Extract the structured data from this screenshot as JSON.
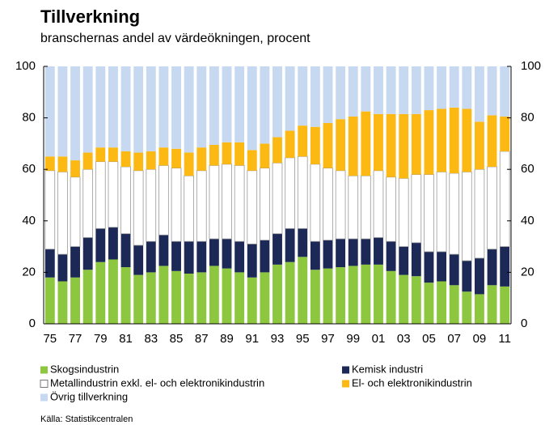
{
  "chart_data": {
    "type": "stacked_bar",
    "title": "Tillverkning",
    "subtitle": "branschernas andel av värdeökningen, procent",
    "source": "Källa: Statistikcentralen",
    "categories": [
      "75",
      null,
      "77",
      null,
      "79",
      null,
      "81",
      null,
      "83",
      null,
      "85",
      null,
      "87",
      null,
      "89",
      null,
      "91",
      null,
      "93",
      null,
      "95",
      null,
      "97",
      null,
      "99",
      null,
      "01",
      null,
      "03",
      null,
      "05",
      null,
      "07",
      null,
      "09",
      null,
      "11"
    ],
    "series": [
      {
        "name": "Skogsindustrin",
        "color": "#8dc63f",
        "values": [
          18,
          16.5,
          18,
          21,
          24,
          25,
          22,
          19,
          20,
          22.5,
          20.5,
          19.5,
          20,
          22.5,
          21.5,
          20,
          18,
          20,
          23,
          24,
          26,
          21,
          21.5,
          22,
          22.5,
          23,
          23,
          20.5,
          19,
          18.5,
          16,
          16.5,
          15,
          12.5,
          11.5,
          15,
          14.5
        ]
      },
      {
        "name": "Kemisk industri",
        "color": "#1c2957",
        "values": [
          11,
          10.5,
          12,
          12.5,
          13,
          12.5,
          13,
          11.5,
          12,
          12,
          11.5,
          12.5,
          12,
          10.5,
          11.5,
          12,
          13,
          12.5,
          12,
          13,
          11,
          11,
          11,
          11,
          10.5,
          10,
          10.5,
          11.5,
          11,
          13,
          12,
          11.5,
          12,
          12,
          14,
          14,
          15.5
        ]
      },
      {
        "name": "Metallindustrin exkl. el- och elektronikindustrin",
        "color": "#ffffff",
        "values": [
          30.5,
          32,
          27,
          26.5,
          26,
          25.5,
          26,
          29,
          28,
          27,
          28.5,
          25.5,
          27.5,
          28.5,
          29,
          29.5,
          28.5,
          28,
          27.5,
          27.5,
          28,
          30,
          28,
          26.5,
          24.5,
          24.5,
          26,
          25,
          26.5,
          26.5,
          30,
          31,
          31.5,
          34.5,
          34.5,
          32,
          37
        ]
      },
      {
        "name": "El- och elektronikindustrin",
        "color": "#fdb913",
        "values": [
          5.5,
          6,
          6.5,
          6.5,
          5.5,
          5.5,
          6,
          7,
          7,
          7,
          7.5,
          9,
          9,
          8,
          8.5,
          9,
          8,
          9.5,
          10,
          10.5,
          12,
          14.5,
          17.5,
          20,
          23,
          25,
          22,
          24.5,
          25,
          23.5,
          25,
          24.5,
          25.5,
          24.5,
          18.5,
          20,
          13.5
        ]
      },
      {
        "name": "Övrig tillverkning",
        "color": "#c6d9f0",
        "values": [
          35,
          35,
          36.5,
          33.5,
          31.5,
          31.5,
          33,
          33.5,
          33,
          31.5,
          32,
          33.5,
          31.5,
          30.5,
          29.5,
          29.5,
          32.5,
          30,
          27.5,
          25,
          23,
          23.5,
          22,
          20.5,
          19.5,
          17.5,
          18.5,
          18.5,
          18.5,
          18.5,
          17,
          16.5,
          16,
          16.5,
          21.5,
          19,
          19.5
        ]
      }
    ],
    "ylim": [
      0,
      100
    ],
    "yticks": [
      0,
      20,
      40,
      60,
      80,
      100
    ],
    "grid": false
  }
}
